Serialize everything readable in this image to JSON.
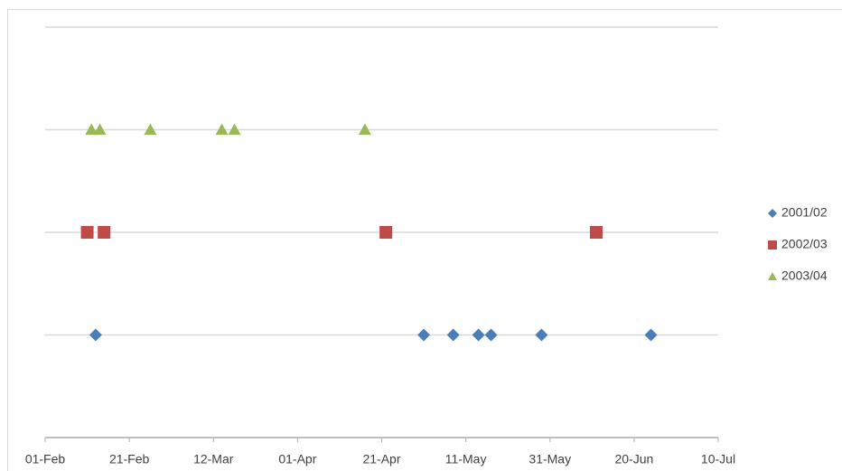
{
  "chart_data": {
    "type": "scatter",
    "series": [
      {
        "name": "2001/02",
        "color": "#4a7ebb",
        "marker": "diamond",
        "x": [
          "13-Feb",
          "01-May",
          "08-May",
          "14-May",
          "17-May",
          "29-May",
          "24-Jun"
        ],
        "values": [
          1,
          1,
          1,
          1,
          1,
          1,
          1
        ]
      },
      {
        "name": "2002/03",
        "color": "#be4b48",
        "marker": "square",
        "x": [
          "11-Feb",
          "15-Feb",
          "22-Apr",
          "11-Jun"
        ],
        "values": [
          2,
          2,
          2,
          2
        ]
      },
      {
        "name": "2003/04",
        "color": "#98b954",
        "marker": "triangle",
        "x": [
          "12-Feb",
          "14-Feb",
          "26-Feb",
          "14-Mar",
          "17-Mar",
          "17-Apr"
        ],
        "values": [
          3,
          3,
          3,
          3,
          3,
          3
        ]
      }
    ],
    "xlim": [
      "01-Feb",
      "10-Jul"
    ],
    "xticks": [
      "01-Feb",
      "21-Feb",
      "12-Mar",
      "01-Apr",
      "21-Apr",
      "11-May",
      "31-May",
      "20-Jun",
      "10-Jul"
    ],
    "ylim": [
      0,
      4
    ],
    "yticks": [
      0,
      1,
      2,
      3,
      4
    ],
    "ytick_labels_visible": false,
    "grid": true,
    "legend": "right"
  }
}
